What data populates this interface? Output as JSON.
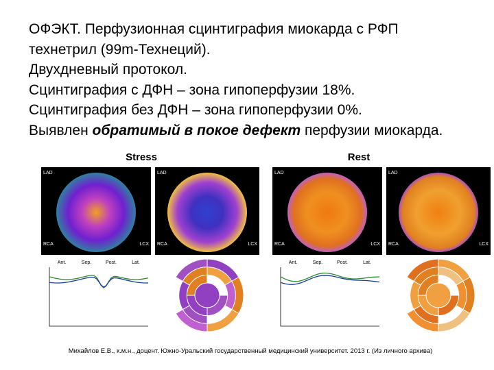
{
  "text": {
    "lines": [
      "ОФЭКТ. Перфузионная сцинтиграфия миокарда с РФП",
      "технетрил (99m-Технеций).",
      "Двухдневный протокол.",
      "Сцинтиграфия с ДФН – зона гипоперфузии 18%.",
      "Сцинтиграфия без ДФН – зона гипоперфузии 0%."
    ],
    "conclusion": {
      "before": "Выявлен",
      "emphasis": "обратимый в покое дефект",
      "after": "перфузии миокарда."
    }
  },
  "panels": [
    {
      "label": "Stress",
      "polar_labels": [
        "LAD",
        "RCA",
        "LCX"
      ],
      "curve_labels": [
        "Ant.",
        "Sep.",
        "Post.",
        "Lat."
      ]
    },
    {
      "label": "Rest",
      "polar_labels": [
        "LAD",
        "RCA",
        "LCX"
      ],
      "curve_labels": [
        "Ant.",
        "Sep.",
        "Post.",
        "Lat."
      ]
    }
  ],
  "footer": "Михайлов Е.В., к.м.н., доцент. Южно-Уральский государственный медицинский университет. 2013 г. (Из личного архива)"
}
